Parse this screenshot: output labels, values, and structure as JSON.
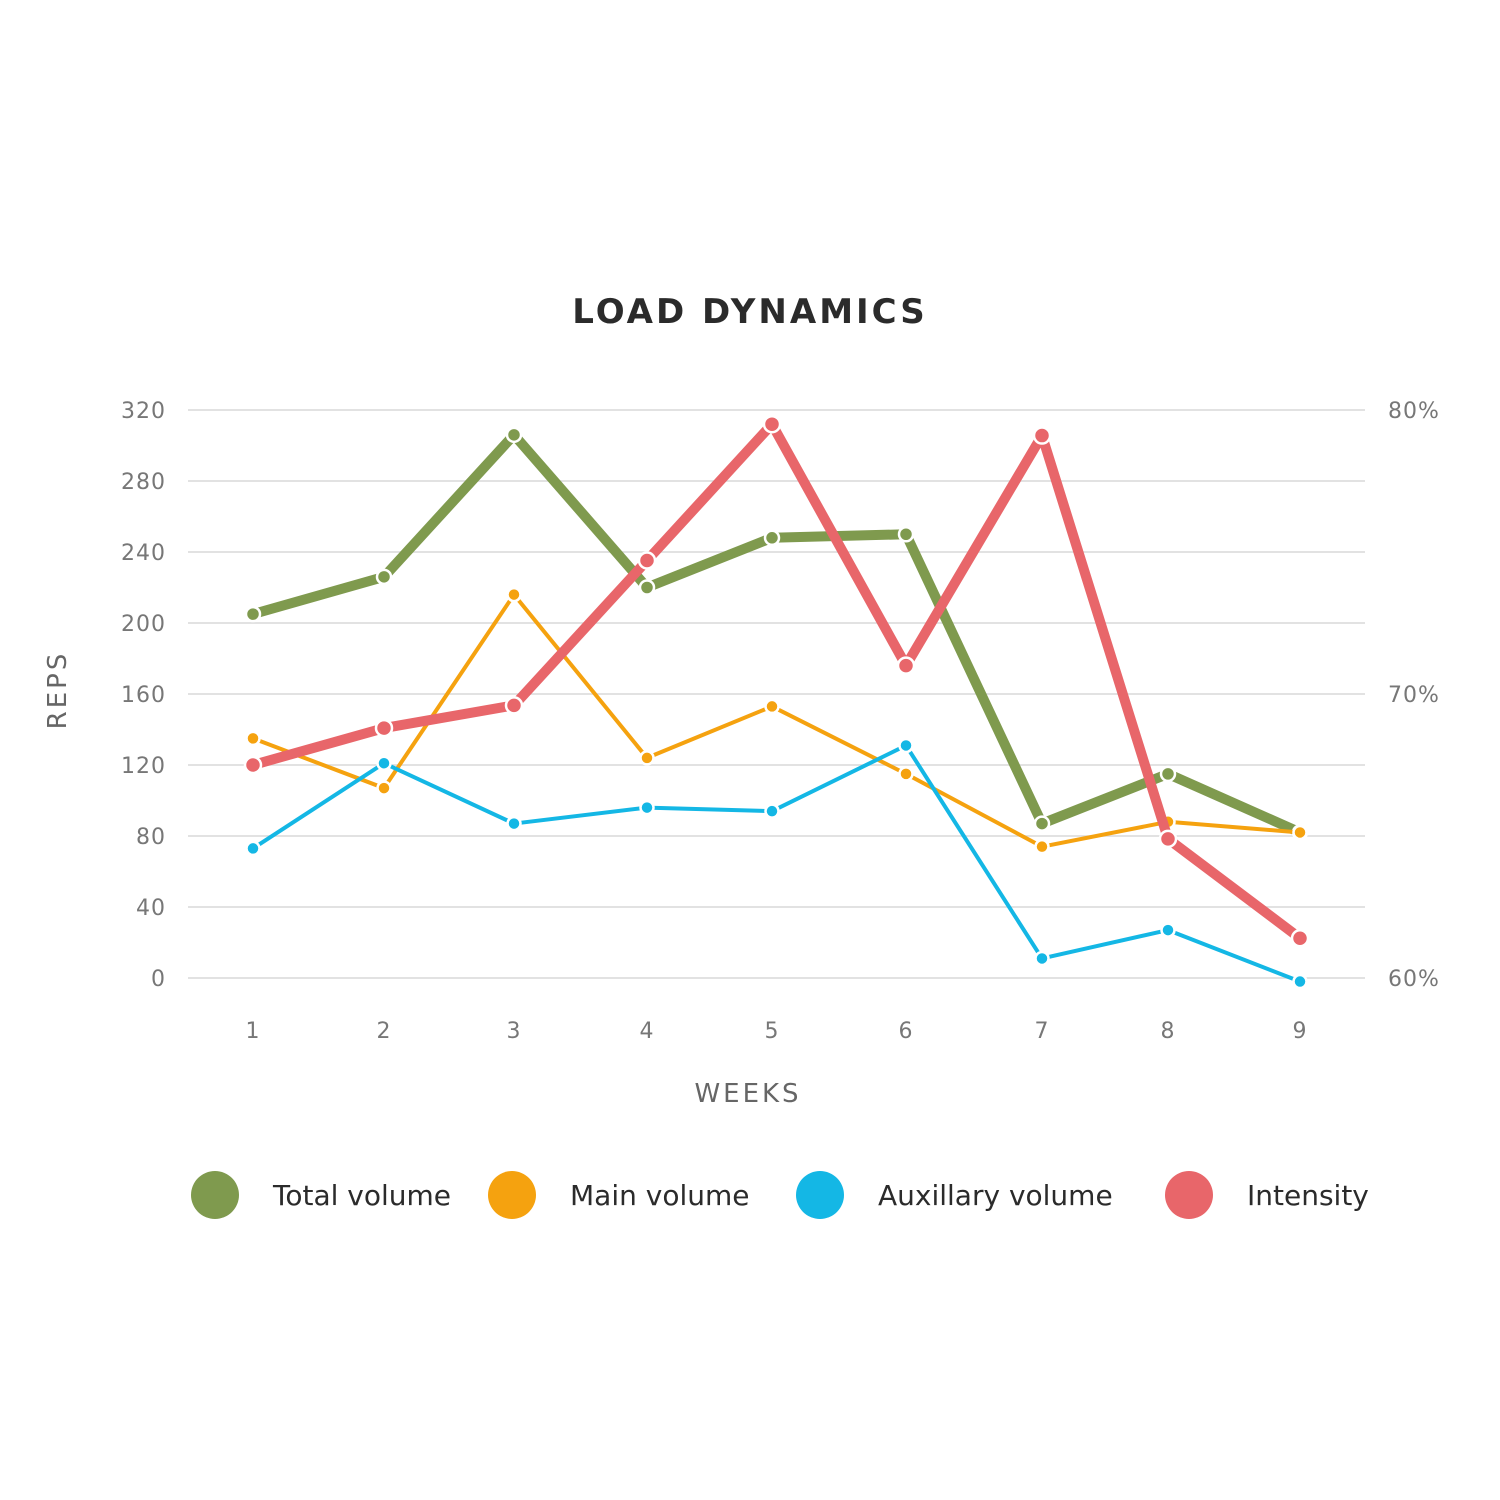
{
  "chart_data": {
    "type": "line",
    "title": "LOAD DYNAMICS",
    "xlabel": "WEEKS",
    "ylabel": "REPS",
    "x": [
      1,
      2,
      3,
      4,
      5,
      6,
      7,
      8,
      9
    ],
    "x_tick_labels": [
      "1",
      "2",
      "3",
      "4",
      "5",
      "6",
      "7",
      "8",
      "9"
    ],
    "ylim": [
      0,
      320
    ],
    "y_ticks": [
      0,
      40,
      80,
      120,
      160,
      200,
      240,
      280,
      320
    ],
    "y_tick_labels": [
      "0",
      "40",
      "80",
      "120",
      "160",
      "200",
      "240",
      "280",
      "320"
    ],
    "y2lim": [
      60,
      80
    ],
    "y2_ticks": [
      60,
      70,
      80
    ],
    "y2_tick_labels": [
      "60%",
      "70%",
      "80%"
    ],
    "grid": true,
    "legend_position": "bottom",
    "series": [
      {
        "name": "Total volume",
        "axis": "left",
        "color": "#7f9a4e",
        "values": [
          205,
          226,
          306,
          220,
          248,
          250,
          87,
          115,
          82
        ]
      },
      {
        "name": "Main volume",
        "axis": "left",
        "color": "#f5a20f",
        "values": [
          135,
          107,
          216,
          124,
          153,
          115,
          74,
          88,
          82
        ]
      },
      {
        "name": "Auxillary volume",
        "axis": "left",
        "color": "#14b7e5",
        "values": [
          73,
          121,
          87,
          96,
          94,
          131,
          11,
          27,
          -2
        ]
      },
      {
        "name": "Intensity",
        "axis": "right",
        "color": "#e8666a",
        "values": [
          67.5,
          68.8,
          69.6,
          74.7,
          79.5,
          71.0,
          79.1,
          64.9,
          61.4
        ]
      }
    ]
  }
}
